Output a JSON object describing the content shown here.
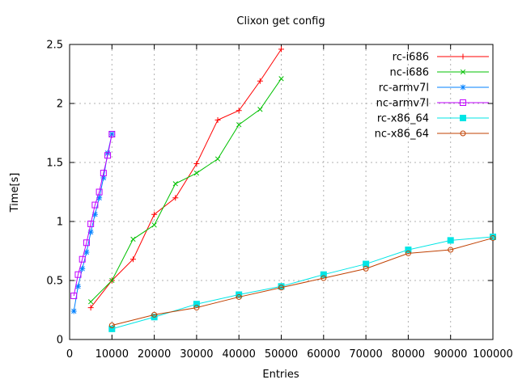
{
  "chart_data": {
    "type": "line",
    "title": "Clixon get config",
    "xlabel": "Entries",
    "ylabel": "Time[s]",
    "xlim": [
      0,
      100000
    ],
    "ylim": [
      0,
      2.5
    ],
    "grid": true,
    "legend_position": "top-right-inside",
    "background": "#ffffff",
    "border_color": "#000000",
    "grid_color": "#b0b0b0",
    "xticks": {
      "values": [
        0,
        10000,
        20000,
        30000,
        40000,
        50000,
        60000,
        70000,
        80000,
        90000,
        100000
      ],
      "labels": [
        "0",
        "10000",
        "20000",
        "30000",
        "40000",
        "50000",
        "60000",
        "70000",
        "80000",
        "90000",
        "100000"
      ]
    },
    "yticks": {
      "values": [
        0,
        0.5,
        1,
        1.5,
        2,
        2.5
      ],
      "labels": [
        "0",
        "0.5",
        "1",
        "1.5",
        "2",
        "2.5"
      ]
    },
    "series": [
      {
        "name": "rc-i686",
        "color": "#ff0000",
        "marker": "plus",
        "points": [
          [
            5000,
            0.27
          ],
          [
            10000,
            0.5
          ],
          [
            15000,
            0.68
          ],
          [
            20000,
            1.06
          ],
          [
            25000,
            1.2
          ],
          [
            30000,
            1.49
          ],
          [
            35000,
            1.86
          ],
          [
            40000,
            1.94
          ],
          [
            45000,
            2.19
          ],
          [
            50000,
            2.46
          ]
        ]
      },
      {
        "name": "nc-i686",
        "color": "#00c000",
        "marker": "cross",
        "points": [
          [
            5000,
            0.32
          ],
          [
            10000,
            0.5
          ],
          [
            15000,
            0.85
          ],
          [
            20000,
            0.97
          ],
          [
            25000,
            1.32
          ],
          [
            30000,
            1.41
          ],
          [
            35000,
            1.53
          ],
          [
            40000,
            1.82
          ],
          [
            45000,
            1.95
          ],
          [
            50000,
            2.21
          ]
        ]
      },
      {
        "name": "rc-armv7l",
        "color": "#0080ff",
        "marker": "asterisk",
        "points": [
          [
            1000,
            0.24
          ],
          [
            2000,
            0.45
          ],
          [
            3000,
            0.6
          ],
          [
            4000,
            0.74
          ],
          [
            5000,
            0.91
          ],
          [
            6000,
            1.06
          ],
          [
            7000,
            1.2
          ],
          [
            8000,
            1.37
          ],
          [
            9000,
            1.58
          ],
          [
            10000,
            1.74
          ]
        ]
      },
      {
        "name": "nc-armv7l",
        "color": "#c000ff",
        "marker": "square-open",
        "points": [
          [
            1000,
            0.37
          ],
          [
            2000,
            0.55
          ],
          [
            3000,
            0.68
          ],
          [
            4000,
            0.82
          ],
          [
            5000,
            0.98
          ],
          [
            6000,
            1.14
          ],
          [
            7000,
            1.25
          ],
          [
            8000,
            1.41
          ],
          [
            9000,
            1.56
          ],
          [
            10000,
            1.74
          ]
        ]
      },
      {
        "name": "rc-x86_64",
        "color": "#00e5e5",
        "marker": "square-filled",
        "points": [
          [
            10000,
            0.09
          ],
          [
            20000,
            0.19
          ],
          [
            30000,
            0.3
          ],
          [
            40000,
            0.38
          ],
          [
            50000,
            0.45
          ],
          [
            60000,
            0.55
          ],
          [
            70000,
            0.64
          ],
          [
            80000,
            0.76
          ],
          [
            90000,
            0.84
          ],
          [
            100000,
            0.87
          ]
        ]
      },
      {
        "name": "nc-x86_64",
        "color": "#c04000",
        "marker": "circle-open",
        "points": [
          [
            10000,
            0.12
          ],
          [
            20000,
            0.21
          ],
          [
            30000,
            0.27
          ],
          [
            40000,
            0.36
          ],
          [
            50000,
            0.44
          ],
          [
            60000,
            0.52
          ],
          [
            70000,
            0.6
          ],
          [
            80000,
            0.73
          ],
          [
            90000,
            0.76
          ],
          [
            100000,
            0.86
          ]
        ]
      }
    ]
  }
}
